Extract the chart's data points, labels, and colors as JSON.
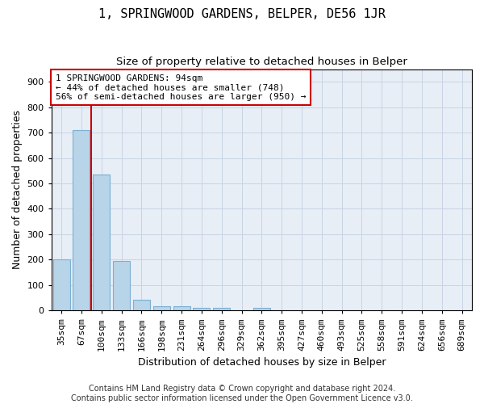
{
  "title": "1, SPRINGWOOD GARDENS, BELPER, DE56 1JR",
  "subtitle": "Size of property relative to detached houses in Belper",
  "xlabel": "Distribution of detached houses by size in Belper",
  "ylabel": "Number of detached properties",
  "categories": [
    "35sqm",
    "67sqm",
    "100sqm",
    "133sqm",
    "166sqm",
    "198sqm",
    "231sqm",
    "264sqm",
    "296sqm",
    "329sqm",
    "362sqm",
    "395sqm",
    "427sqm",
    "460sqm",
    "493sqm",
    "525sqm",
    "558sqm",
    "591sqm",
    "624sqm",
    "656sqm",
    "689sqm"
  ],
  "bar_values": [
    200,
    710,
    535,
    193,
    42,
    17,
    16,
    11,
    10,
    0,
    10,
    0,
    0,
    0,
    0,
    0,
    0,
    0,
    0,
    0,
    0
  ],
  "bar_color": "#b8d4e8",
  "bar_edge_color": "#7bafd4",
  "property_line_index": 1.5,
  "property_line_color": "#cc0000",
  "annotation_text": "1 SPRINGWOOD GARDENS: 94sqm\n← 44% of detached houses are smaller (748)\n56% of semi-detached houses are larger (950) →",
  "annotation_box_color": "#cc0000",
  "ylim": [
    0,
    950
  ],
  "yticks": [
    0,
    100,
    200,
    300,
    400,
    500,
    600,
    700,
    800,
    900
  ],
  "footer_text": "Contains HM Land Registry data © Crown copyright and database right 2024.\nContains public sector information licensed under the Open Government Licence v3.0.",
  "title_fontsize": 11,
  "subtitle_fontsize": 9.5,
  "axis_label_fontsize": 9,
  "tick_fontsize": 8,
  "footer_fontsize": 7,
  "grid_color": "#c8d4e4",
  "background_color": "#e8eef6"
}
